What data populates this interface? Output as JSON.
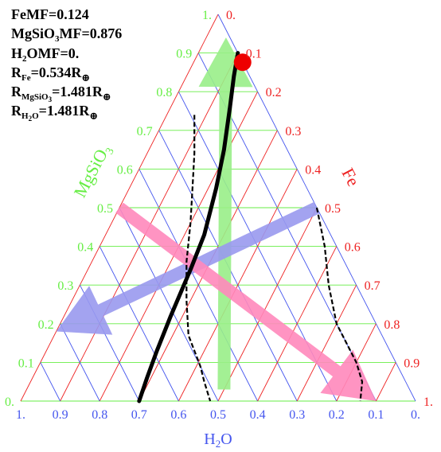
{
  "info": {
    "fe_mf_label": "FeMF=",
    "fe_mf_value": "0.124",
    "mgsio3_mf_label_prefix": "MgSiO",
    "mgsio3_mf_label_suffix": "MF=",
    "mgsio3_mf_sub": "3",
    "mgsio3_mf_value": "0.876",
    "h2o_mf_label_prefix": "H",
    "h2o_mf_label_suffix": "OMF=",
    "h2o_mf_sub": "2",
    "h2o_mf_value": "0.",
    "r_symbol": "R",
    "r_fe_sub": "Fe",
    "r_fe_value": "=0.534R",
    "r_mgsio3_sub_prefix": "MgSiO",
    "r_mgsio3_sub_sub": "3",
    "r_mgsio3_value": "=1.481R",
    "r_h2o_sub_prefix": "H",
    "r_h2o_sub_sub": "2",
    "r_h2o_sub_suffix": "O",
    "r_h2o_value": "=1.481R",
    "earth_symbol": "⊕"
  },
  "axes": {
    "mgsio3": {
      "name_main": "MgSiO",
      "name_sub": "3",
      "color": "#66ee44",
      "ticks": [
        "0.",
        "0.1",
        "0.2",
        "0.3",
        "0.4",
        "0.5",
        "0.6",
        "0.7",
        "0.8",
        "0.9",
        "1."
      ]
    },
    "fe": {
      "name": "Fe",
      "color": "#ee2222",
      "ticks": [
        "0.",
        "0.1",
        "0.2",
        "0.3",
        "0.4",
        "0.5",
        "0.6",
        "0.7",
        "0.8",
        "0.9",
        "1."
      ]
    },
    "h2o": {
      "name_prefix": "H",
      "name_sub": "2",
      "name_suffix": "O",
      "color": "#4455ee",
      "ticks": [
        "1.",
        "0.9",
        "0.8",
        "0.7",
        "0.6",
        "0.5",
        "0.4",
        "0.3",
        "0.2",
        "0.1",
        "0."
      ]
    }
  },
  "colors": {
    "green_arrow": "#99ee88",
    "blue_arrow": "#9999ee",
    "pink_arrow": "#ff88bb",
    "current_point": "#ee0000",
    "curve": "#000000"
  },
  "current_point": {
    "fe": 0.124,
    "mgsio3": 0.876,
    "h2o": 0.0
  },
  "curves": {
    "solid": [
      [
        0.1,
        0.9
      ],
      [
        0.12,
        0.84
      ],
      [
        0.15,
        0.76
      ],
      [
        0.19,
        0.65
      ],
      [
        0.22,
        0.55
      ],
      [
        0.25,
        0.43
      ],
      [
        0.26,
        0.34
      ],
      [
        0.27,
        0.22
      ],
      [
        0.28,
        0.13
      ],
      [
        0.29,
        0.06
      ],
      [
        0.3,
        0.0
      ]
    ],
    "dashed_left": [
      [
        0.07,
        0.74
      ],
      [
        0.12,
        0.64
      ],
      [
        0.16,
        0.55
      ],
      [
        0.2,
        0.46
      ],
      [
        0.24,
        0.36
      ],
      [
        0.29,
        0.26
      ],
      [
        0.34,
        0.17
      ],
      [
        0.41,
        0.09
      ],
      [
        0.44,
        0.05
      ],
      [
        0.48,
        0.0
      ]
    ],
    "dashed_right": [
      [
        0.5,
        0.5
      ],
      [
        0.57,
        0.4
      ],
      [
        0.63,
        0.3
      ],
      [
        0.7,
        0.2
      ],
      [
        0.77,
        0.13
      ],
      [
        0.8,
        0.1
      ],
      [
        0.84,
        0.05
      ],
      [
        0.86,
        0.0
      ]
    ]
  },
  "arrows": [
    {
      "name": "green-arrow",
      "color_key": "green_arrow",
      "from": [
        0.5,
        0.03
      ],
      "to": [
        0.05,
        0.94
      ]
    },
    {
      "name": "blue-arrow",
      "color_key": "blue_arrow",
      "from": [
        0.5,
        0.5
      ],
      "to": [
        0.0,
        0.18
      ]
    },
    {
      "name": "pink-arrow",
      "color_key": "pink_arrow",
      "from": [
        0.0,
        0.5
      ],
      "to": [
        0.9,
        0.0
      ]
    }
  ]
}
